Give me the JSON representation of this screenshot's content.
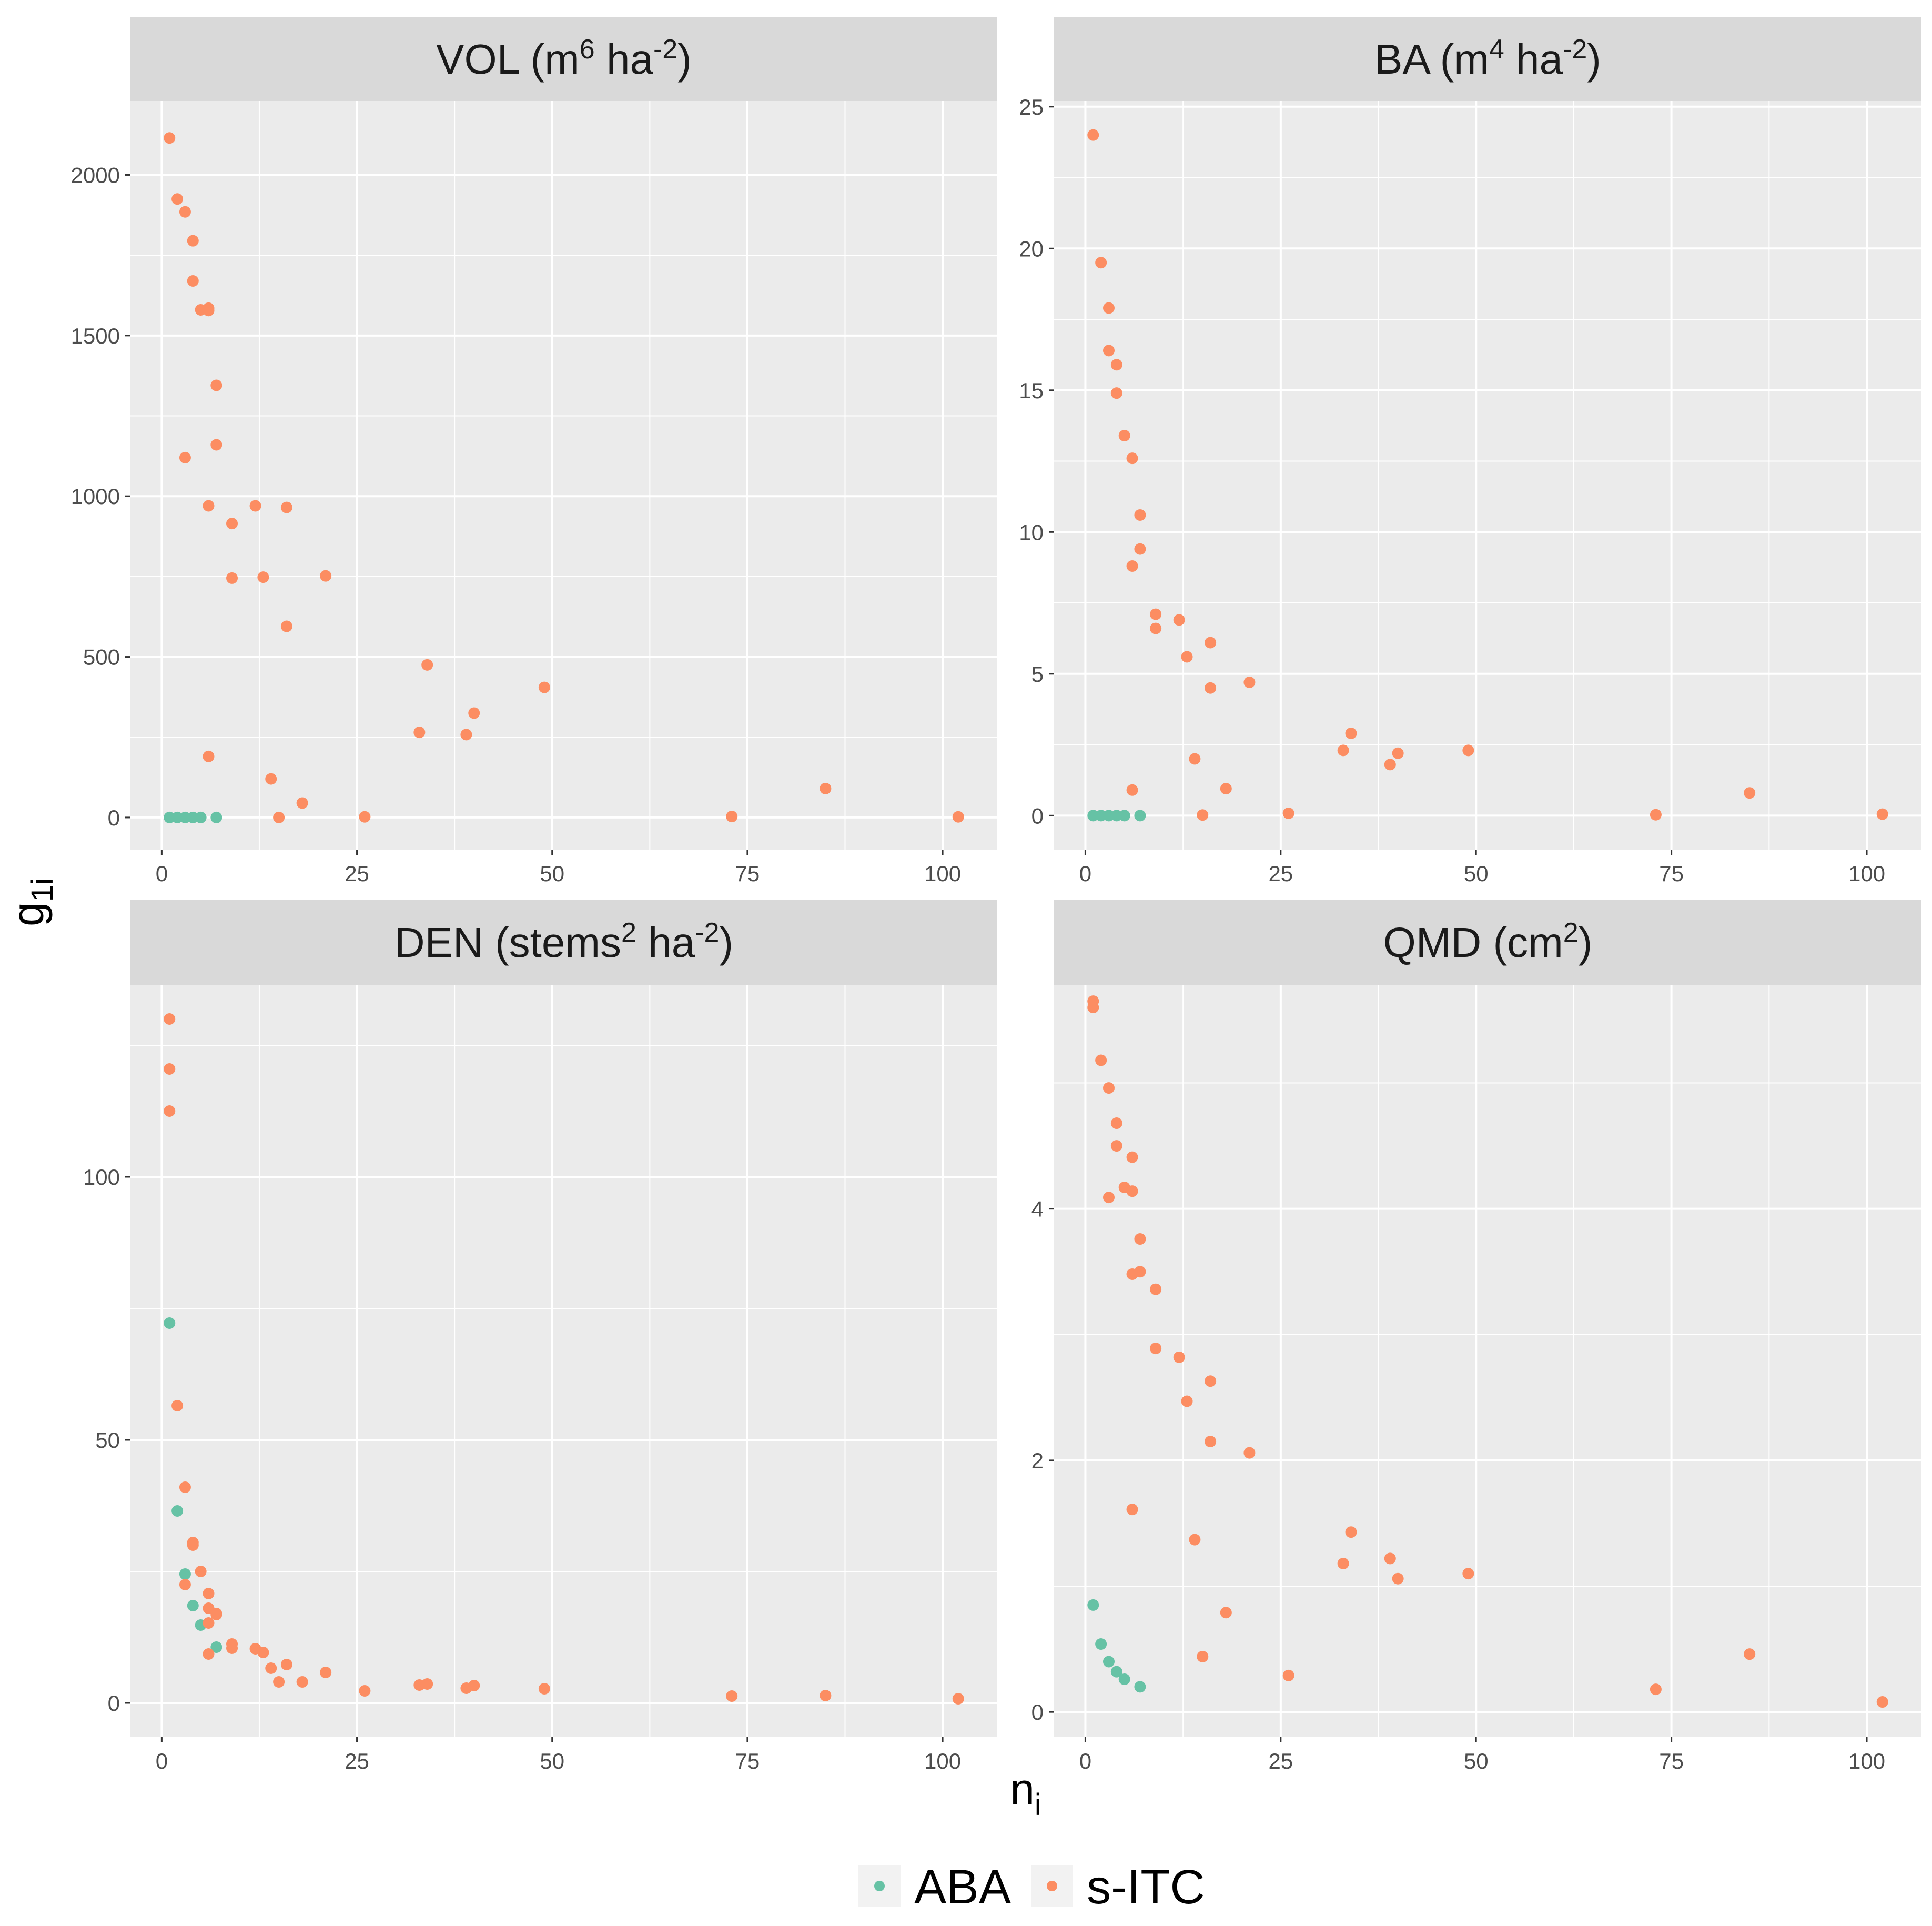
{
  "colors": {
    "ABA": "#66c2a5",
    "s-ITC": "#fc8d62",
    "panel_bg": "#ebebeb",
    "strip_bg": "#d9d9d9",
    "grid": "#ffffff"
  },
  "labels": {
    "y_main": "g",
    "y_sub": "1i",
    "x_main": "n",
    "x_sub": "i"
  },
  "legend": {
    "entries": [
      {
        "key": "ABA",
        "label": "ABA"
      },
      {
        "key": "s-ITC",
        "label": "s-ITC"
      }
    ]
  },
  "chart_data": [
    {
      "type": "scatter",
      "title_parts": [
        {
          "text": "VOL (m",
          "sup": false
        },
        {
          "text": "6",
          "sup": true
        },
        {
          "text": " ha",
          "sup": false
        },
        {
          "text": "-2",
          "sup": true
        },
        {
          "text": ")",
          "sup": false
        }
      ],
      "xlim": [
        -4,
        107
      ],
      "ylim": [
        -100,
        2230
      ],
      "x_ticks": [
        0,
        25,
        50,
        75,
        100
      ],
      "x_tick_labels": [
        "0",
        "25",
        "50",
        "75",
        "100"
      ],
      "y_ticks": [
        0,
        500,
        1000,
        1500,
        2000
      ],
      "y_tick_labels": [
        "0",
        "500",
        "1000",
        "1500",
        "2000"
      ],
      "series": [
        {
          "name": "ABA",
          "points": [
            [
              1,
              0
            ],
            [
              2,
              0
            ],
            [
              3,
              0
            ],
            [
              4,
              0
            ],
            [
              5,
              0
            ],
            [
              7,
              0
            ]
          ]
        },
        {
          "name": "s-ITC",
          "points": [
            [
              1,
              2115
            ],
            [
              2,
              1925
            ],
            [
              3,
              1885
            ],
            [
              4,
              1795
            ],
            [
              4,
              1670
            ],
            [
              5,
              1580
            ],
            [
              6,
              1585
            ],
            [
              6,
              1578
            ],
            [
              7,
              1345
            ],
            [
              7,
              1160
            ],
            [
              3,
              1120
            ],
            [
              6,
              970
            ],
            [
              12,
              970
            ],
            [
              16,
              965
            ],
            [
              9,
              915
            ],
            [
              9,
              745
            ],
            [
              13,
              748
            ],
            [
              21,
              752
            ],
            [
              16,
              595
            ],
            [
              34,
              475
            ],
            [
              40,
              325
            ],
            [
              49,
              405
            ],
            [
              33,
              265
            ],
            [
              39,
              258
            ],
            [
              6,
              190
            ],
            [
              14,
              120
            ],
            [
              18,
              45
            ],
            [
              15,
              0
            ],
            [
              26,
              2
            ],
            [
              73,
              3
            ],
            [
              85,
              90
            ],
            [
              102,
              2
            ]
          ]
        }
      ]
    },
    {
      "type": "scatter",
      "title_parts": [
        {
          "text": "BA (m",
          "sup": false
        },
        {
          "text": "4",
          "sup": true
        },
        {
          "text": " ha",
          "sup": false
        },
        {
          "text": "-2",
          "sup": true
        },
        {
          "text": ")",
          "sup": false
        }
      ],
      "xlim": [
        -4,
        107
      ],
      "ylim": [
        -1.2,
        25.2
      ],
      "x_ticks": [
        0,
        25,
        50,
        75,
        100
      ],
      "x_tick_labels": [
        "0",
        "25",
        "50",
        "75",
        "100"
      ],
      "y_ticks": [
        0,
        5,
        10,
        15,
        20,
        25
      ],
      "y_tick_labels": [
        "0",
        "5",
        "10",
        "15",
        "20",
        "25"
      ],
      "series": [
        {
          "name": "ABA",
          "points": [
            [
              1,
              0
            ],
            [
              2,
              0
            ],
            [
              3,
              0
            ],
            [
              4,
              0
            ],
            [
              5,
              0
            ],
            [
              7,
              0
            ]
          ]
        },
        {
          "name": "s-ITC",
          "points": [
            [
              1,
              24
            ],
            [
              2,
              19.5
            ],
            [
              3,
              17.9
            ],
            [
              3,
              16.4
            ],
            [
              4,
              15.9
            ],
            [
              4,
              14.9
            ],
            [
              5,
              13.4
            ],
            [
              6,
              12.6
            ],
            [
              7,
              10.6
            ],
            [
              7,
              9.4
            ],
            [
              6,
              8.8
            ],
            [
              9,
              7.1
            ],
            [
              12,
              6.9
            ],
            [
              9,
              6.6
            ],
            [
              16,
              6.1
            ],
            [
              13,
              5.6
            ],
            [
              21,
              4.7
            ],
            [
              16,
              4.5
            ],
            [
              34,
              2.9
            ],
            [
              33,
              2.3
            ],
            [
              40,
              2.2
            ],
            [
              49,
              2.3
            ],
            [
              14,
              2.0
            ],
            [
              39,
              1.8
            ],
            [
              6,
              0.9
            ],
            [
              18,
              0.95
            ],
            [
              15,
              0.02
            ],
            [
              26,
              0.08
            ],
            [
              73,
              0.03
            ],
            [
              85,
              0.8
            ],
            [
              102,
              0.05
            ]
          ]
        }
      ]
    },
    {
      "type": "scatter",
      "title_parts": [
        {
          "text": "DEN (stems",
          "sup": false
        },
        {
          "text": "2",
          "sup": true
        },
        {
          "text": " ha",
          "sup": false
        },
        {
          "text": "-2",
          "sup": true
        },
        {
          "text": ")",
          "sup": false
        }
      ],
      "xlim": [
        -4,
        107
      ],
      "ylim": [
        -6.5,
        136.5
      ],
      "x_ticks": [
        0,
        25,
        50,
        75,
        100
      ],
      "x_tick_labels": [
        "0",
        "25",
        "50",
        "75",
        "100"
      ],
      "y_ticks": [
        0,
        50,
        100
      ],
      "y_tick_labels": [
        "0",
        "50",
        "100"
      ],
      "series": [
        {
          "name": "ABA",
          "points": [
            [
              1,
              72.2
            ],
            [
              2,
              36.5
            ],
            [
              3,
              24.5
            ],
            [
              4,
              18.5
            ],
            [
              5,
              14.8
            ],
            [
              7,
              10.6
            ]
          ]
        },
        {
          "name": "s-ITC",
          "points": [
            [
              1,
              130
            ],
            [
              1,
              120.5
            ],
            [
              1,
              112.5
            ],
            [
              2,
              56.5
            ],
            [
              3,
              41
            ],
            [
              4,
              30.5
            ],
            [
              4,
              30
            ],
            [
              5,
              25
            ],
            [
              3,
              22.5
            ],
            [
              6,
              20.8
            ],
            [
              6,
              18
            ],
            [
              7,
              17
            ],
            [
              7,
              16.8
            ],
            [
              6,
              15.2
            ],
            [
              9,
              11.2
            ],
            [
              9,
              10.4
            ],
            [
              12,
              10.3
            ],
            [
              13,
              9.6
            ],
            [
              6,
              9.3
            ],
            [
              14,
              6.6
            ],
            [
              16,
              7.3
            ],
            [
              15,
              4
            ],
            [
              18,
              4
            ],
            [
              21,
              5.8
            ],
            [
              26,
              2.3
            ],
            [
              33,
              3.4
            ],
            [
              34,
              3.6
            ],
            [
              39,
              2.8
            ],
            [
              40,
              3.3
            ],
            [
              49,
              2.7
            ],
            [
              73,
              1.3
            ],
            [
              85,
              1.4
            ],
            [
              102,
              0.8
            ]
          ]
        }
      ]
    },
    {
      "type": "scatter",
      "title_parts": [
        {
          "text": "QMD (cm",
          "sup": false
        },
        {
          "text": "2",
          "sup": true
        },
        {
          "text": ")",
          "sup": false
        }
      ],
      "xlim": [
        -4,
        107
      ],
      "ylim": [
        -0.2,
        5.78
      ],
      "x_ticks": [
        0,
        25,
        50,
        75,
        100
      ],
      "x_tick_labels": [
        "0",
        "25",
        "50",
        "75",
        "100"
      ],
      "y_ticks": [
        0,
        2,
        4
      ],
      "y_tick_labels": [
        "0",
        "2",
        "4"
      ],
      "series": [
        {
          "name": "ABA",
          "points": [
            [
              1,
              0.85
            ],
            [
              2,
              0.54
            ],
            [
              3,
              0.4
            ],
            [
              4,
              0.32
            ],
            [
              5,
              0.26
            ],
            [
              7,
              0.2
            ]
          ]
        },
        {
          "name": "s-ITC",
          "points": [
            [
              1,
              5.65
            ],
            [
              1,
              5.6
            ],
            [
              2,
              5.18
            ],
            [
              3,
              4.96
            ],
            [
              4,
              4.68
            ],
            [
              4,
              4.5
            ],
            [
              6,
              4.41
            ],
            [
              5,
              4.17
            ],
            [
              6,
              4.14
            ],
            [
              3,
              4.09
            ],
            [
              7,
              3.76
            ],
            [
              7,
              3.5
            ],
            [
              6,
              3.48
            ],
            [
              9,
              3.36
            ],
            [
              9,
              2.89
            ],
            [
              12,
              2.82
            ],
            [
              16,
              2.63
            ],
            [
              13,
              2.47
            ],
            [
              16,
              2.15
            ],
            [
              21,
              2.06
            ],
            [
              6,
              1.61
            ],
            [
              14,
              1.37
            ],
            [
              34,
              1.43
            ],
            [
              39,
              1.22
            ],
            [
              33,
              1.18
            ],
            [
              40,
              1.06
            ],
            [
              49,
              1.1
            ],
            [
              18,
              0.79
            ],
            [
              15,
              0.44
            ],
            [
              26,
              0.29
            ],
            [
              73,
              0.18
            ],
            [
              85,
              0.46
            ],
            [
              102,
              0.08
            ]
          ]
        }
      ]
    }
  ]
}
